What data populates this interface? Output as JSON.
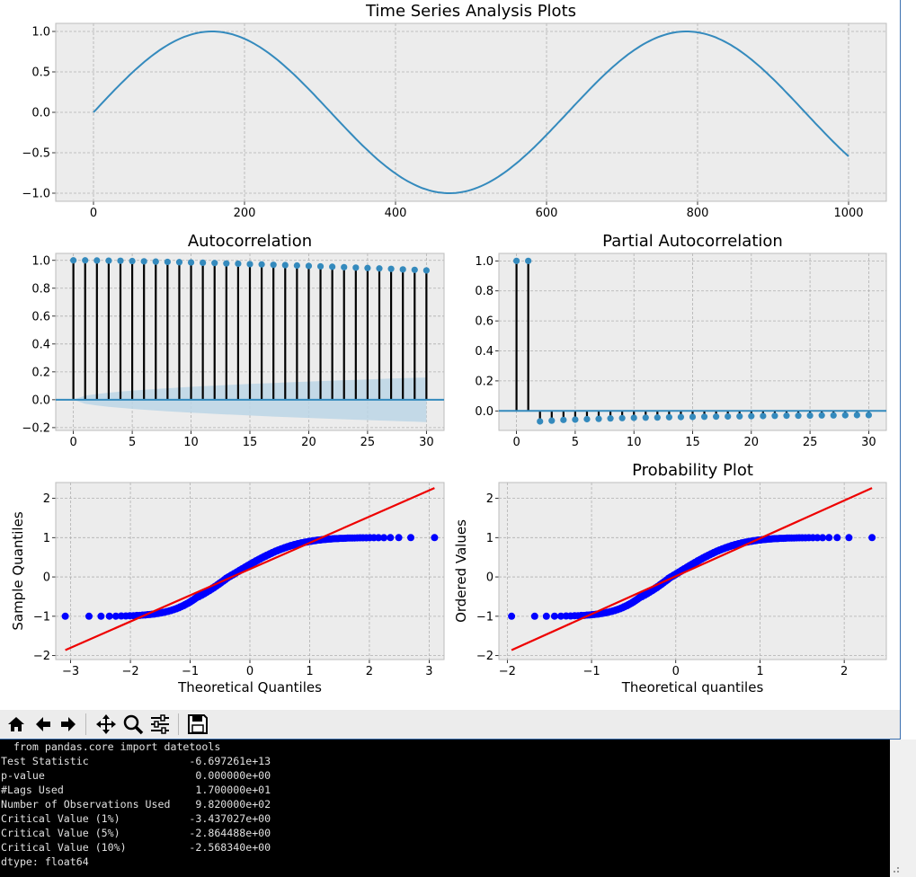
{
  "figure": {
    "ts": {
      "title": "Time Series Analysis Plots",
      "xlim": [
        -50,
        1050
      ],
      "ylim": [
        -1.1,
        1.1
      ],
      "xticks": [
        0,
        200,
        400,
        600,
        800,
        1000
      ],
      "yticks": [
        1.0,
        0.5,
        0.0,
        -0.5,
        -1.0
      ],
      "xticklabels": [
        "0",
        "200",
        "400",
        "600",
        "800",
        "1000"
      ],
      "yticklabels": [
        "1.0",
        "0.5",
        "0.0",
        "−0.5",
        "−1.0"
      ]
    },
    "acf": {
      "title": "Autocorrelation",
      "xlim": [
        -1.5,
        31.5
      ],
      "ylim": [
        -0.22,
        1.05
      ],
      "xticks": [
        0,
        5,
        10,
        15,
        20,
        25,
        30
      ],
      "xticklabels": [
        "0",
        "5",
        "10",
        "15",
        "20",
        "25",
        "30"
      ],
      "yticks": [
        1.0,
        0.8,
        0.6,
        0.4,
        0.2,
        0.0,
        -0.2
      ],
      "yticklabels": [
        "1.0",
        "0.8",
        "0.6",
        "0.4",
        "0.2",
        "0.0",
        "−0.2"
      ]
    },
    "pacf": {
      "title": "Partial Autocorrelation",
      "xlim": [
        -1.5,
        31.5
      ],
      "ylim": [
        -0.13,
        1.05
      ],
      "xticks": [
        0,
        5,
        10,
        15,
        20,
        25,
        30
      ],
      "xticklabels": [
        "0",
        "5",
        "10",
        "15",
        "20",
        "25",
        "30"
      ],
      "yticks": [
        1.0,
        0.8,
        0.6,
        0.4,
        0.2,
        0.0
      ],
      "yticklabels": [
        "1.0",
        "0.8",
        "0.6",
        "0.4",
        "0.2",
        "0.0"
      ]
    },
    "qq": {
      "title": "",
      "xlabel": "Theoretical Quantiles",
      "ylabel": "Sample Quantiles",
      "xlim": [
        -3.25,
        3.25
      ],
      "ylim": [
        -2.1,
        2.4
      ],
      "xticks": [
        -3,
        -2,
        -1,
        0,
        1,
        2,
        3
      ],
      "xticklabels": [
        "−3",
        "−2",
        "−1",
        "0",
        "1",
        "2",
        "3"
      ],
      "yticks": [
        2,
        1,
        0,
        -1,
        -2
      ],
      "yticklabels": [
        "2",
        "1",
        "0",
        "−1",
        "−2"
      ],
      "xmax": 3.09
    },
    "prob": {
      "title": "Probability Plot",
      "xlabel": "Theoretical quantiles",
      "ylabel": "Ordered Values",
      "xlim": [
        -2.1,
        2.5
      ],
      "ylim": [
        -2.1,
        2.4
      ],
      "xticks": [
        -2,
        -1,
        0,
        1,
        2
      ],
      "xticklabels": [
        "−2",
        "−1",
        "0",
        "1",
        "2"
      ],
      "yticks": [
        2,
        1,
        0,
        -1,
        -2
      ],
      "yticklabels": [
        "2",
        "1",
        "0",
        "−1",
        "−2"
      ],
      "xmax": 2.33
    }
  },
  "chart_data": [
    {
      "type": "line",
      "title": "Time Series Analysis Plots",
      "x_range": [
        0,
        1000
      ],
      "series": [
        {
          "formula": "sin(2*pi*x/628.3)",
          "values_sample": {
            "0": 0.0,
            "157": 1.0,
            "471": -1.0,
            "785": 1.0,
            "1000": -0.55
          }
        }
      ],
      "xlim": [
        -50,
        1050
      ],
      "ylim": [
        -1.1,
        1.1
      ],
      "grid": true
    },
    {
      "type": "scatter",
      "title": "Autocorrelation",
      "lags": [
        0,
        1,
        2,
        3,
        4,
        5,
        6,
        7,
        8,
        9,
        10,
        11,
        12,
        13,
        14,
        15,
        16,
        17,
        18,
        19,
        20,
        21,
        22,
        23,
        24,
        25,
        26,
        27,
        28,
        29,
        30
      ],
      "values": [
        1.0,
        1.0,
        0.999,
        0.998,
        0.997,
        0.995,
        0.993,
        0.991,
        0.989,
        0.987,
        0.985,
        0.983,
        0.981,
        0.978,
        0.976,
        0.973,
        0.971,
        0.968,
        0.966,
        0.963,
        0.96,
        0.957,
        0.954,
        0.951,
        0.948,
        0.945,
        0.942,
        0.939,
        0.935,
        0.932,
        0.928
      ],
      "confidence_band_at_lag_30": 0.16,
      "xlim": [
        -1.5,
        31.5
      ],
      "ylim": [
        -0.22,
        1.05
      ],
      "grid": true
    },
    {
      "type": "scatter",
      "title": "Partial Autocorrelation",
      "lags": [
        0,
        1,
        2,
        3,
        4,
        5,
        6,
        7,
        8,
        9,
        10,
        11,
        12,
        13,
        14,
        15,
        16,
        17,
        18,
        19,
        20,
        21,
        22,
        23,
        24,
        25,
        26,
        27,
        28,
        29,
        30
      ],
      "values": [
        1.0,
        1.0,
        -0.07,
        -0.065,
        -0.06,
        -0.058,
        -0.055,
        -0.053,
        -0.05,
        -0.048,
        -0.046,
        -0.045,
        -0.044,
        -0.042,
        -0.041,
        -0.04,
        -0.039,
        -0.038,
        -0.037,
        -0.036,
        -0.035,
        -0.034,
        -0.033,
        -0.032,
        -0.032,
        -0.031,
        -0.03,
        -0.03,
        -0.029,
        -0.028,
        -0.028
      ],
      "xlim": [
        -1.5,
        31.5
      ],
      "ylim": [
        -0.13,
        1.05
      ],
      "grid": true
    },
    {
      "type": "scatter",
      "title": "",
      "xlabel": "Theoretical Quantiles",
      "ylabel": "Sample Quantiles",
      "points": "sorted sin samples vs normal quantiles, x from -3.09 to 3.09, y from -1 to 1",
      "fit_line": {
        "x": [
          -3.09,
          3.09
        ],
        "y": [
          -1.86,
          2.26
        ]
      },
      "xlim": [
        -3.25,
        3.25
      ],
      "ylim": [
        -2.1,
        2.4
      ],
      "grid": true
    },
    {
      "type": "scatter",
      "title": "Probability Plot",
      "xlabel": "Theoretical quantiles",
      "ylabel": "Ordered Values",
      "points": "sorted sin samples vs normal quantiles, x from -1.95 to 2.33, y from -1 to 1",
      "fit_line": {
        "x": [
          -1.95,
          2.33
        ],
        "y": [
          -1.86,
          2.26
        ]
      },
      "xlim": [
        -2.1,
        2.5
      ],
      "ylim": [
        -2.1,
        2.4
      ],
      "grid": true
    }
  ],
  "toolbar": {
    "buttons": [
      "home-icon",
      "back-icon",
      "forward-icon",
      "pan-icon",
      "zoom-icon",
      "configure-subplots-icon",
      "save-icon"
    ]
  },
  "console": {
    "lines": [
      "  from pandas.core import datetools",
      "Test Statistic                -6.697261e+13",
      "p-value                        0.000000e+00",
      "#Lags Used                     1.700000e+01",
      "Number of Observations Used    9.820000e+02",
      "Critical Value (1%)           -3.437027e+00",
      "Critical Value (5%)           -2.864488e+00",
      "Critical Value (10%)          -2.568340e+00",
      "dtype: float64"
    ]
  },
  "colors": {
    "axes_bg": "#ececec",
    "line": "#348abd",
    "qq_points": "#0000ff",
    "fit": "#ee0000",
    "band": "#bcd6e6"
  }
}
